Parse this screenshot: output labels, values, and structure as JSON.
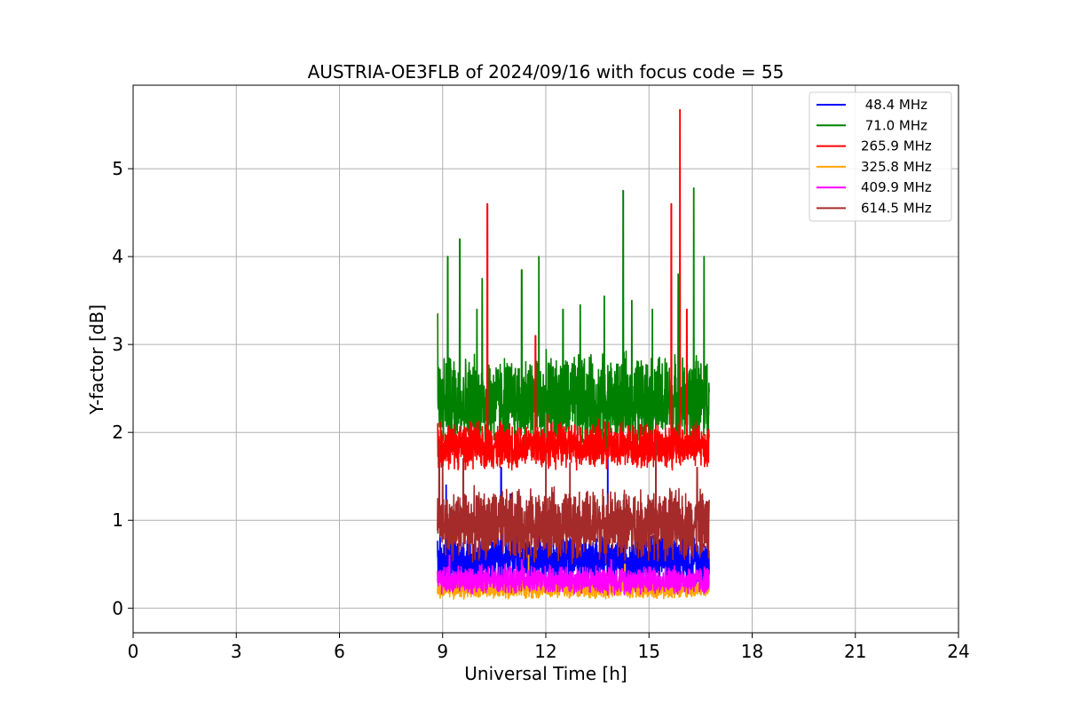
{
  "chart_data": {
    "type": "line",
    "title": "AUSTRIA-OE3FLB of 2024/09/16 with focus code = 55",
    "xlabel": "Universal Time [h]",
    "ylabel": "Y-factor [dB]",
    "xlim": [
      0,
      24
    ],
    "ylim": [
      -0.28,
      5.95
    ],
    "x_ticks": [
      0,
      3,
      6,
      9,
      12,
      15,
      18,
      21,
      24
    ],
    "y_ticks": [
      0,
      1,
      2,
      3,
      4,
      5
    ],
    "grid": true,
    "legend_position": "top-right",
    "time_range_h": [
      8.85,
      16.75
    ],
    "series": [
      {
        "name": " 48.4 MHz",
        "color": "#0000ff",
        "baseline": 0.55,
        "noise": 0.35,
        "spikes": [
          [
            9.1,
            1.4
          ],
          [
            10.7,
            1.6
          ],
          [
            11.0,
            1.3
          ],
          [
            13.8,
            1.75
          ],
          [
            15.2,
            1.6
          ]
        ]
      },
      {
        "name": " 71.0 MHz",
        "color": "#008000",
        "baseline": 2.35,
        "noise": 0.6,
        "spikes": [
          [
            8.85,
            3.35
          ],
          [
            9.15,
            4.0
          ],
          [
            9.5,
            4.2
          ],
          [
            10.0,
            3.4
          ],
          [
            10.15,
            3.75
          ],
          [
            11.3,
            3.85
          ],
          [
            11.8,
            4.0
          ],
          [
            12.5,
            3.4
          ],
          [
            13.0,
            3.45
          ],
          [
            13.7,
            3.55
          ],
          [
            14.25,
            4.75
          ],
          [
            14.5,
            3.5
          ],
          [
            15.1,
            3.4
          ],
          [
            15.85,
            3.8
          ],
          [
            16.3,
            4.78
          ],
          [
            16.6,
            4.0
          ]
        ]
      },
      {
        "name": "265.9 MHz",
        "color": "#ff0000",
        "baseline": 1.85,
        "noise": 0.3,
        "spikes": [
          [
            8.85,
            2.1
          ],
          [
            10.3,
            4.6
          ],
          [
            11.7,
            3.1
          ],
          [
            12.05,
            2.2
          ],
          [
            15.65,
            4.6
          ],
          [
            15.9,
            5.67
          ],
          [
            16.1,
            3.4
          ]
        ]
      },
      {
        "name": "325.8 MHz",
        "color": "#ffa500",
        "baseline": 0.22,
        "noise": 0.12,
        "spikes": [
          [
            11.5,
            0.6
          ],
          [
            14.3,
            0.5
          ]
        ]
      },
      {
        "name": "409.9 MHz",
        "color": "#ff00ff",
        "baseline": 0.32,
        "noise": 0.18,
        "spikes": [
          [
            9.2,
            0.6
          ],
          [
            11.3,
            0.55
          ],
          [
            13.9,
            0.55
          ]
        ]
      },
      {
        "name": "614.5 MHz",
        "color": "#a52a2a",
        "baseline": 0.95,
        "noise": 0.45,
        "spikes": [
          [
            8.9,
            1.9
          ],
          [
            9.0,
            1.65
          ],
          [
            9.6,
            1.7
          ],
          [
            12.0,
            1.75
          ],
          [
            12.7,
            1.65
          ],
          [
            15.2,
            1.9
          ],
          [
            16.4,
            1.6
          ]
        ]
      }
    ]
  }
}
